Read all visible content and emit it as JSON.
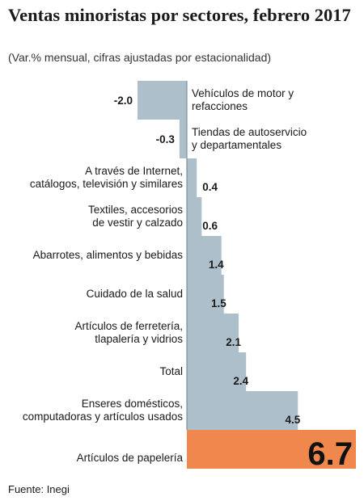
{
  "title": "Ventas minoristas por sectores, febrero 2017",
  "subtitle": "(Var.% mensual, cifras ajustadas por estacionalidad)",
  "source": "Fuente: Inegi",
  "colors": {
    "bar": "#adbfca",
    "highlight": "#f0874c",
    "axis": "#6f7f89"
  },
  "chart_data": {
    "type": "bar",
    "orientation": "horizontal",
    "title": "Ventas minoristas por sectores, febrero 2017",
    "subtitle": "(Var.% mensual, cifras ajustadas por estacionalidad)",
    "grid": false,
    "categories": [
      [
        "Vehículos de motor y",
        "refacciones"
      ],
      [
        "Tiendas de autoservicio",
        "y departamentales"
      ],
      [
        "A través de Internet,",
        "catálogos, televisión y similares"
      ],
      [
        "Textiles, accesorios",
        "de vestir y calzado"
      ],
      [
        "Abarrotes, alimentos y bebidas"
      ],
      [
        "Cuidado de la salud"
      ],
      [
        "Artículos de ferretería,",
        "tlapalería y vidrios"
      ],
      [
        "Total"
      ],
      [
        "Enseres domésticos,",
        "computadoras y artículos usados"
      ],
      [
        "Artículos de papelería"
      ]
    ],
    "values": [
      -2.0,
      -0.3,
      0.4,
      0.6,
      1.4,
      1.5,
      2.1,
      2.4,
      4.5,
      6.7
    ],
    "value_labels": [
      "-2.0",
      "-0.3",
      "0.4",
      "0.6",
      "1.4",
      "1.5",
      "2.1",
      "2.4",
      "4.5",
      "6.7"
    ],
    "highlight_index": 9
  }
}
